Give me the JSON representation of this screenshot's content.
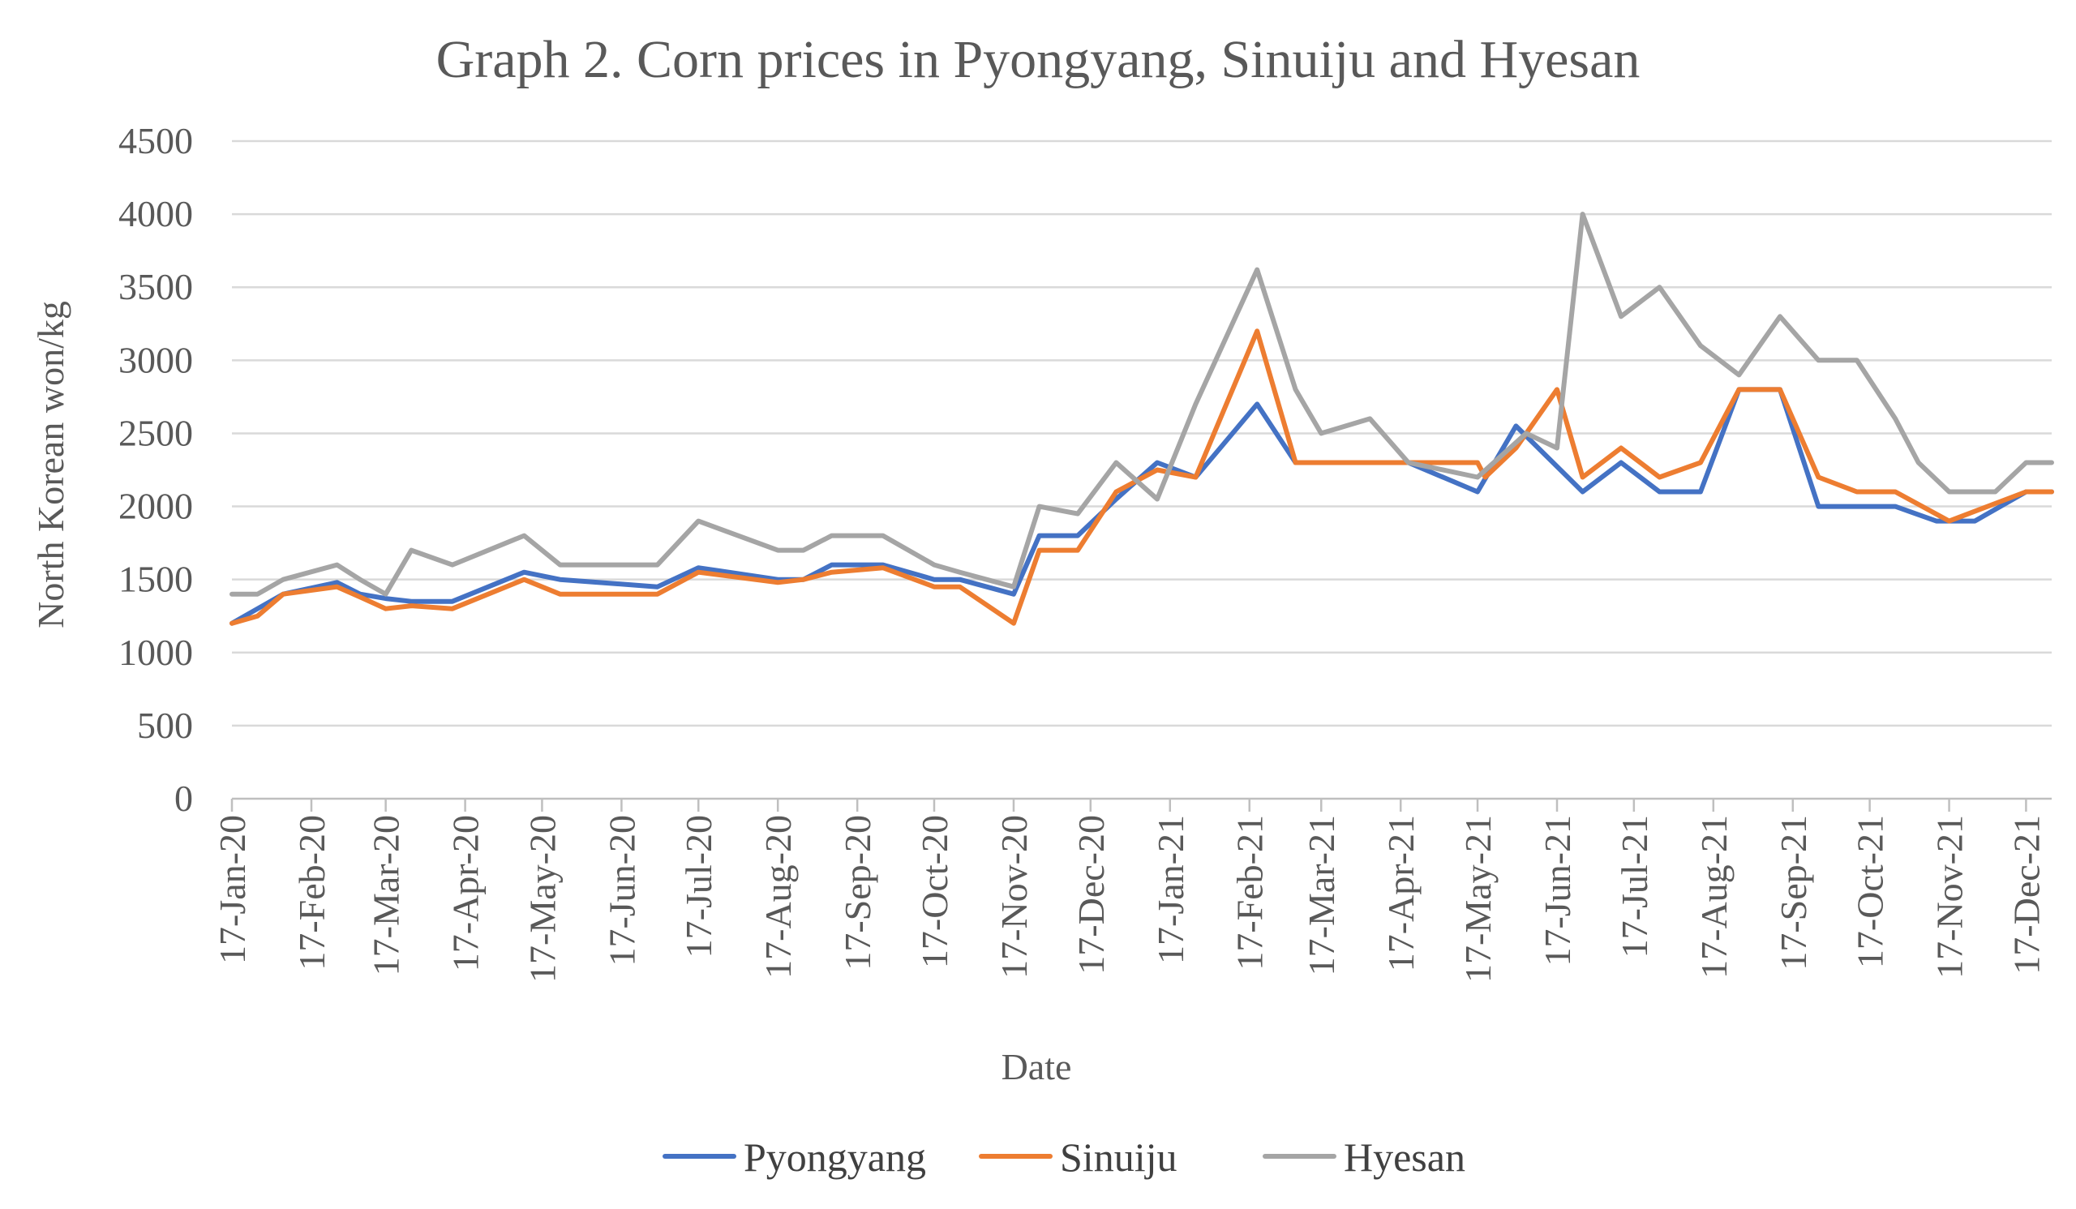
{
  "chart_data": {
    "type": "line",
    "title": "Graph 2. Corn prices in Pyongyang, Sinuiju and Hyesan",
    "xlabel": "Date",
    "ylabel": "North Korean won/kg",
    "ylim": [
      0,
      4500
    ],
    "yticks": [
      "0",
      "500",
      "1000",
      "1500",
      "2000",
      "2500",
      "3000",
      "3500",
      "4000",
      "4500"
    ],
    "grid": "horizontal",
    "legend_position": "bottom",
    "x_tick_labels": [
      "17-Jan-20",
      "17-Feb-20",
      "17-Mar-20",
      "17-Apr-20",
      "17-May-20",
      "17-Jun-20",
      "17-Jul-20",
      "17-Aug-20",
      "17-Sep-20",
      "17-Oct-20",
      "17-Nov-20",
      "17-Dec-20",
      "17-Jan-21",
      "17-Feb-21",
      "17-Mar-21",
      "17-Apr-21",
      "17-May-21",
      "17-Jun-21",
      "17-Jul-21",
      "17-Aug-21",
      "17-Sep-21",
      "17-Oct-21",
      "17-Nov-21",
      "17-Dec-21"
    ],
    "x_tick_dates": [
      "2020-01-17",
      "2020-02-17",
      "2020-03-17",
      "2020-04-17",
      "2020-05-17",
      "2020-06-17",
      "2020-07-17",
      "2020-08-17",
      "2020-09-17",
      "2020-10-17",
      "2020-11-17",
      "2020-12-17",
      "2021-01-17",
      "2021-02-17",
      "2021-03-17",
      "2021-04-17",
      "2021-05-17",
      "2021-06-17",
      "2021-07-17",
      "2021-08-17",
      "2021-09-17",
      "2021-10-17",
      "2021-11-17",
      "2021-12-17"
    ],
    "x_range": [
      "2020-01-17",
      "2021-12-27"
    ],
    "series": [
      {
        "name": "Pyongyang",
        "color": "#4472c4",
        "points": [
          [
            "2020-01-17",
            1200
          ],
          [
            "2020-01-27",
            1300
          ],
          [
            "2020-02-06",
            1400
          ],
          [
            "2020-02-27",
            1480
          ],
          [
            "2020-03-07",
            1400
          ],
          [
            "2020-03-17",
            1370
          ],
          [
            "2020-03-27",
            1350
          ],
          [
            "2020-04-12",
            1350
          ],
          [
            "2020-05-10",
            1550
          ],
          [
            "2020-05-24",
            1500
          ],
          [
            "2020-07-01",
            1450
          ],
          [
            "2020-07-17",
            1580
          ],
          [
            "2020-08-17",
            1500
          ],
          [
            "2020-08-27",
            1500
          ],
          [
            "2020-09-07",
            1600
          ],
          [
            "2020-09-27",
            1600
          ],
          [
            "2020-10-17",
            1500
          ],
          [
            "2020-10-27",
            1500
          ],
          [
            "2020-11-17",
            1400
          ],
          [
            "2020-11-27",
            1800
          ],
          [
            "2020-12-12",
            1800
          ],
          [
            "2020-12-27",
            2050
          ],
          [
            "2021-01-12",
            2300
          ],
          [
            "2021-01-27",
            2200
          ],
          [
            "2021-02-20",
            2700
          ],
          [
            "2021-03-07",
            2300
          ],
          [
            "2021-03-27",
            2300
          ],
          [
            "2021-04-20",
            2300
          ],
          [
            "2021-05-17",
            2100
          ],
          [
            "2021-06-01",
            2550
          ],
          [
            "2021-06-27",
            2100
          ],
          [
            "2021-07-12",
            2300
          ],
          [
            "2021-07-27",
            2100
          ],
          [
            "2021-08-12",
            2100
          ],
          [
            "2021-08-27",
            2800
          ],
          [
            "2021-09-12",
            2800
          ],
          [
            "2021-09-27",
            2000
          ],
          [
            "2021-10-12",
            2000
          ],
          [
            "2021-10-27",
            2000
          ],
          [
            "2021-11-12",
            1900
          ],
          [
            "2021-11-27",
            1900
          ],
          [
            "2021-12-17",
            2100
          ],
          [
            "2021-12-27",
            2100
          ]
        ]
      },
      {
        "name": "Sinuiju",
        "color": "#ed7d31",
        "points": [
          [
            "2020-01-17",
            1200
          ],
          [
            "2020-01-27",
            1250
          ],
          [
            "2020-02-06",
            1400
          ],
          [
            "2020-02-27",
            1450
          ],
          [
            "2020-03-07",
            1380
          ],
          [
            "2020-03-17",
            1300
          ],
          [
            "2020-03-27",
            1320
          ],
          [
            "2020-04-12",
            1300
          ],
          [
            "2020-05-10",
            1500
          ],
          [
            "2020-05-24",
            1400
          ],
          [
            "2020-07-01",
            1400
          ],
          [
            "2020-07-17",
            1550
          ],
          [
            "2020-08-17",
            1480
          ],
          [
            "2020-08-27",
            1500
          ],
          [
            "2020-09-07",
            1550
          ],
          [
            "2020-09-27",
            1580
          ],
          [
            "2020-10-17",
            1450
          ],
          [
            "2020-10-27",
            1450
          ],
          [
            "2020-11-17",
            1200
          ],
          [
            "2020-11-27",
            1700
          ],
          [
            "2020-12-12",
            1700
          ],
          [
            "2020-12-27",
            2100
          ],
          [
            "2021-01-12",
            2250
          ],
          [
            "2021-01-27",
            2200
          ],
          [
            "2021-02-20",
            3200
          ],
          [
            "2021-03-07",
            2300
          ],
          [
            "2021-03-27",
            2300
          ],
          [
            "2021-04-20",
            2300
          ],
          [
            "2021-05-17",
            2300
          ],
          [
            "2021-05-20",
            2200
          ],
          [
            "2021-06-01",
            2400
          ],
          [
            "2021-06-17",
            2800
          ],
          [
            "2021-06-27",
            2200
          ],
          [
            "2021-07-12",
            2400
          ],
          [
            "2021-07-27",
            2200
          ],
          [
            "2021-08-12",
            2300
          ],
          [
            "2021-08-27",
            2800
          ],
          [
            "2021-09-12",
            2800
          ],
          [
            "2021-09-27",
            2200
          ],
          [
            "2021-10-12",
            2100
          ],
          [
            "2021-10-27",
            2100
          ],
          [
            "2021-11-17",
            1900
          ],
          [
            "2021-12-17",
            2100
          ],
          [
            "2021-12-27",
            2100
          ]
        ]
      },
      {
        "name": "Hyesan",
        "color": "#a5a5a5",
        "points": [
          [
            "2020-01-17",
            1400
          ],
          [
            "2020-01-27",
            1400
          ],
          [
            "2020-02-06",
            1500
          ],
          [
            "2020-02-27",
            1600
          ],
          [
            "2020-03-07",
            1500
          ],
          [
            "2020-03-17",
            1400
          ],
          [
            "2020-03-27",
            1700
          ],
          [
            "2020-04-12",
            1600
          ],
          [
            "2020-05-10",
            1800
          ],
          [
            "2020-05-24",
            1600
          ],
          [
            "2020-07-01",
            1600
          ],
          [
            "2020-07-17",
            1900
          ],
          [
            "2020-08-17",
            1700
          ],
          [
            "2020-08-27",
            1700
          ],
          [
            "2020-09-07",
            1800
          ],
          [
            "2020-09-27",
            1800
          ],
          [
            "2020-10-17",
            1600
          ],
          [
            "2020-10-27",
            1550
          ],
          [
            "2020-11-17",
            1450
          ],
          [
            "2020-11-27",
            2000
          ],
          [
            "2020-12-12",
            1950
          ],
          [
            "2020-12-27",
            2300
          ],
          [
            "2021-01-12",
            2050
          ],
          [
            "2021-01-27",
            2700
          ],
          [
            "2021-02-20",
            3620
          ],
          [
            "2021-03-07",
            2800
          ],
          [
            "2021-03-17",
            2500
          ],
          [
            "2021-04-05",
            2600
          ],
          [
            "2021-04-20",
            2300
          ],
          [
            "2021-05-17",
            2200
          ],
          [
            "2021-06-05",
            2500
          ],
          [
            "2021-06-17",
            2400
          ],
          [
            "2021-06-27",
            4000
          ],
          [
            "2021-07-12",
            3300
          ],
          [
            "2021-07-27",
            3500
          ],
          [
            "2021-08-12",
            3100
          ],
          [
            "2021-08-27",
            2900
          ],
          [
            "2021-09-12",
            3300
          ],
          [
            "2021-09-27",
            3000
          ],
          [
            "2021-10-12",
            3000
          ],
          [
            "2021-10-27",
            2600
          ],
          [
            "2021-11-05",
            2300
          ],
          [
            "2021-11-17",
            2100
          ],
          [
            "2021-12-05",
            2100
          ],
          [
            "2021-12-17",
            2300
          ],
          [
            "2021-12-27",
            2300
          ]
        ]
      }
    ]
  }
}
